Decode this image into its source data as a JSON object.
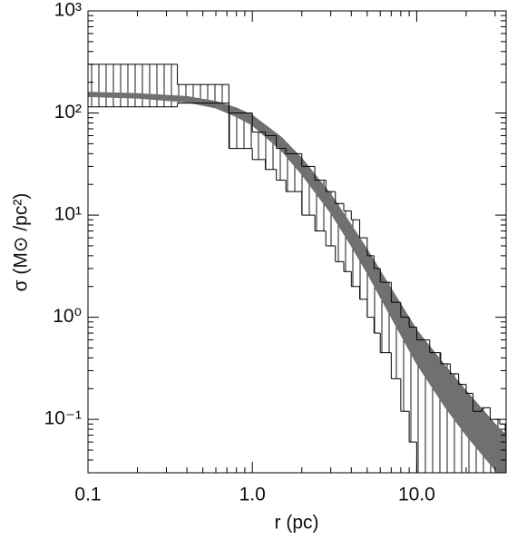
{
  "chart_data": {
    "type": "range-step",
    "xlabel": "r (pc)",
    "ylabel": "σ (M⊙ /pc²)",
    "log_x": true,
    "log_y": true,
    "xlim": [
      0.1,
      35
    ],
    "ylim": [
      0.03,
      1000
    ],
    "xticks": [
      0.1,
      {
        "value": 1,
        "label": "1.0"
      },
      {
        "value": 10,
        "label": "10.0"
      }
    ],
    "yticks": [
      {
        "value": 0.1,
        "label": "10⁻¹"
      },
      {
        "value": 1,
        "label": "10⁰"
      },
      {
        "value": 10,
        "label": "10¹"
      },
      {
        "value": 100,
        "label": "10²"
      },
      {
        "value": 1000,
        "label": "10³"
      }
    ],
    "hist": {
      "color": "#000000",
      "bins": [
        0.1,
        0.35,
        0.72,
        1.0,
        1.2,
        1.4,
        1.6,
        2.0,
        2.4,
        2.8,
        3.2,
        3.6,
        4.0,
        4.5,
        5,
        5.5,
        6,
        7,
        8,
        9,
        10,
        12,
        14,
        16,
        18,
        20,
        22,
        25,
        28,
        32,
        35
      ],
      "upper": [
        300,
        190,
        100,
        65,
        60,
        45,
        40,
        30,
        22,
        17,
        13,
        11,
        9,
        6,
        4,
        3,
        2.2,
        1.4,
        1,
        0.8,
        0.6,
        0.45,
        0.35,
        0.28,
        0.22,
        0.18,
        0.12,
        0.13,
        0.1,
        0.09
      ],
      "lower": [
        115,
        125,
        45,
        35,
        28,
        22,
        17,
        10,
        7,
        5,
        3.5,
        2.8,
        2,
        1.5,
        1,
        0.7,
        0.45,
        0.25,
        0.12,
        0.06,
        0.03,
        null,
        null,
        null,
        null,
        null,
        null,
        null,
        null,
        null
      ]
    },
    "band": {
      "color": "#707070",
      "x": [
        0.1,
        0.2,
        0.4,
        0.6,
        0.8,
        1,
        1.5,
        2,
        3,
        4,
        5,
        7,
        10,
        15,
        20,
        30,
        35
      ],
      "upper": [
        160,
        155,
        145,
        130,
        112,
        95,
        58,
        36,
        16,
        8,
        4.6,
        1.9,
        0.75,
        0.33,
        0.19,
        0.09,
        0.07
      ],
      "lower": [
        145,
        140,
        128,
        112,
        92,
        76,
        43,
        25,
        10.5,
        5,
        2.7,
        1.0,
        0.35,
        0.13,
        0.07,
        0.032,
        0.024
      ]
    }
  }
}
